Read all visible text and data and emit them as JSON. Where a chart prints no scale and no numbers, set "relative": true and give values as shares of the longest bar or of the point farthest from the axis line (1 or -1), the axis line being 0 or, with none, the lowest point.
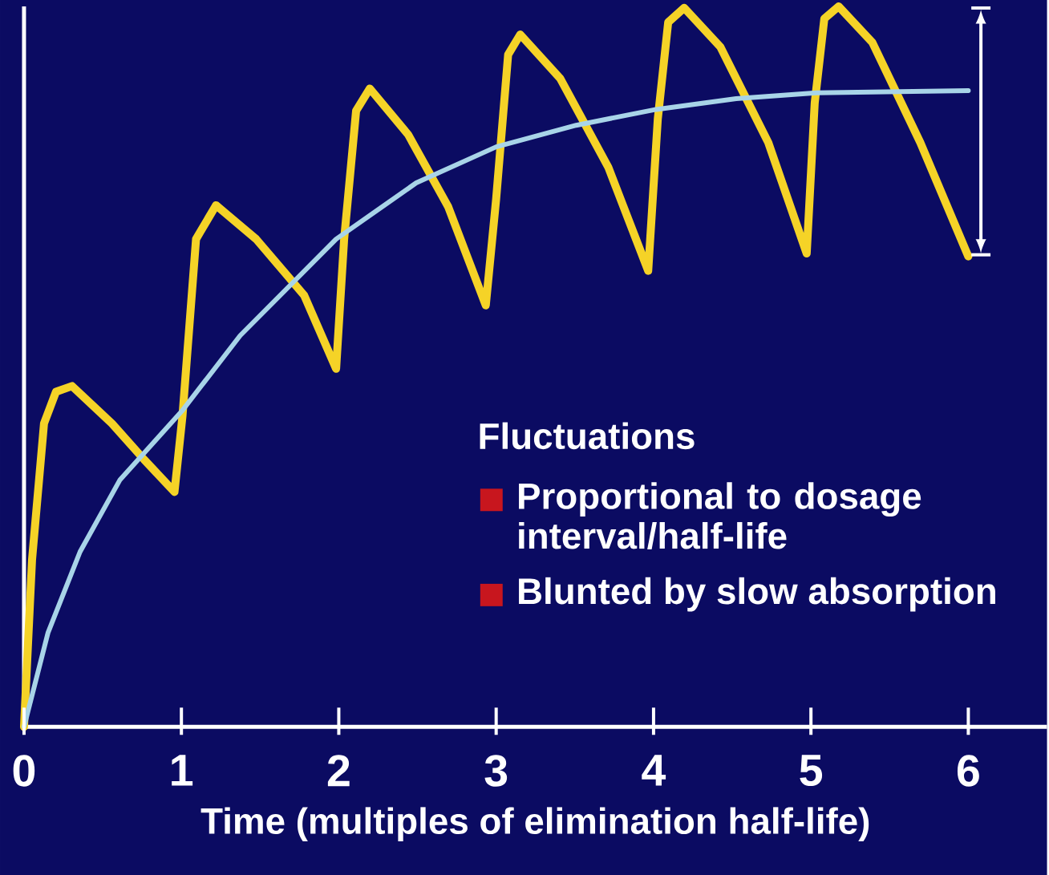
{
  "chart_data": {
    "type": "line",
    "relative": true,
    "marker": "none",
    "xlabel": "Time (multiples of elimination half-life)",
    "xlim": [
      0,
      6.5
    ],
    "xticks": [
      0,
      1,
      2,
      3,
      4,
      5,
      6
    ],
    "annotations": [
      "Fluctuations",
      "Proportional to dosage interval/half-life",
      "Blunted by slow absorption"
    ],
    "series": [
      {
        "color": "#f5d327",
        "x": [
          0,
          0.051,
          0.127,
          0.203,
          0.305,
          0.559,
          0.763,
          0.956,
          1.007,
          1.093,
          1.22,
          1.475,
          1.78,
          1.983,
          2.034,
          2.11,
          2.197,
          2.441,
          2.695,
          2.934,
          3.0,
          3.076,
          3.153,
          3.407,
          3.712,
          3.966,
          4.027,
          4.093,
          4.195,
          4.424,
          4.729,
          4.973,
          5.024,
          5.085,
          5.176,
          5.39,
          5.695,
          6.0
        ],
        "values": [
          0,
          0.232,
          0.421,
          0.465,
          0.473,
          0.421,
          0.371,
          0.326,
          0.432,
          0.677,
          0.724,
          0.677,
          0.599,
          0.497,
          0.677,
          0.855,
          0.886,
          0.822,
          0.722,
          0.585,
          0.733,
          0.933,
          0.961,
          0.9,
          0.777,
          0.633,
          0.844,
          0.978,
          0.998,
          0.944,
          0.811,
          0.657,
          0.866,
          0.983,
          1.0,
          0.95,
          0.811,
          0.653
        ]
      },
      {
        "color": "#a8d4e8",
        "x": [
          0,
          0.153,
          0.356,
          0.61,
          1.002,
          1.373,
          1.983,
          2.492,
          3.0,
          3.508,
          4.017,
          4.525,
          5.034,
          6.0
        ],
        "values": [
          0,
          0.131,
          0.243,
          0.343,
          0.438,
          0.543,
          0.677,
          0.755,
          0.805,
          0.835,
          0.857,
          0.872,
          0.88,
          0.883
        ]
      }
    ]
  }
}
